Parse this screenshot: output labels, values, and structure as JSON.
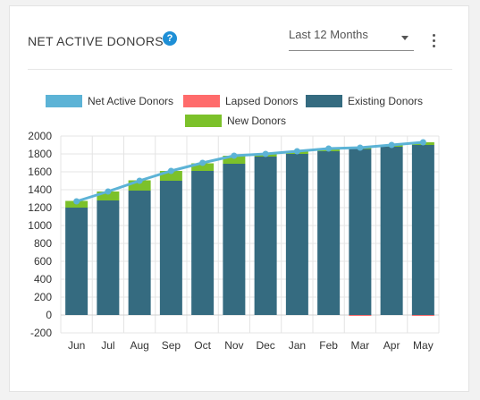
{
  "header": {
    "title": "NET ACTIVE DONORS",
    "help_glyph": "?",
    "period_selected": "Last 12 Months"
  },
  "colors": {
    "net_active": "#5cb3d6",
    "lapsed": "#ff6b6b",
    "existing": "#356b80",
    "new": "#7cc12a",
    "help_icon": "#1e8fd6"
  },
  "chart_data": {
    "type": "bar",
    "categories": [
      "Jun",
      "Jul",
      "Aug",
      "Sep",
      "Oct",
      "Nov",
      "Dec",
      "Jan",
      "Feb",
      "Mar",
      "Apr",
      "May"
    ],
    "ylim": [
      -200,
      2000
    ],
    "yticks": [
      -200,
      0,
      200,
      400,
      600,
      800,
      1000,
      1200,
      1400,
      1600,
      1800,
      2000
    ],
    "grid": true,
    "legend_position": "top",
    "legend": [
      "Net Active Donors",
      "Lapsed Donors",
      "Existing Donors",
      "New Donors"
    ],
    "series": [
      {
        "name": "Existing Donors",
        "type": "bar",
        "stack": "donors",
        "values": [
          1200,
          1280,
          1390,
          1500,
          1610,
          1690,
          1770,
          1800,
          1830,
          1855,
          1880,
          1900
        ]
      },
      {
        "name": "New Donors",
        "type": "bar",
        "stack": "donors",
        "values": [
          75,
          100,
          115,
          110,
          85,
          90,
          30,
          30,
          35,
          20,
          20,
          30
        ]
      },
      {
        "name": "Lapsed Donors",
        "type": "bar",
        "stack": "donors",
        "values": [
          0,
          0,
          0,
          0,
          0,
          0,
          0,
          0,
          0,
          -5,
          0,
          -5
        ]
      },
      {
        "name": "Net Active Donors",
        "type": "line",
        "values": [
          1270,
          1380,
          1500,
          1610,
          1700,
          1780,
          1800,
          1830,
          1860,
          1870,
          1900,
          1930
        ]
      }
    ]
  }
}
